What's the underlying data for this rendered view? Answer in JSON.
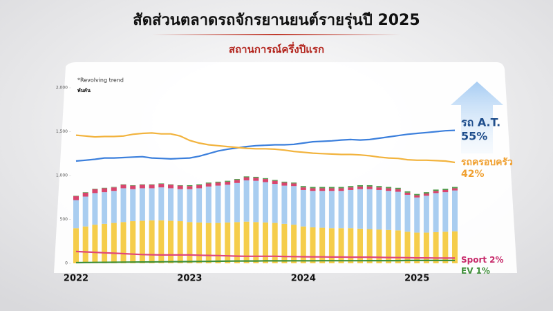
{
  "chart_data": {
    "type": "bar-line",
    "title": "สัดส่วนตลาดรถจักรยานยนต์รายรุ่นปี 2025",
    "subtitle": "สถานการณ์ครึ่งปีแรก",
    "note": "*Revolving trend",
    "y_unit": "พันคัน",
    "categories": [
      "2022",
      null,
      null,
      null,
      null,
      null,
      null,
      null,
      null,
      null,
      null,
      null,
      "2023",
      null,
      null,
      null,
      null,
      null,
      null,
      null,
      null,
      null,
      null,
      null,
      "2024",
      null,
      null,
      null,
      null,
      null,
      null,
      null,
      null,
      null,
      null,
      null,
      "2025",
      null,
      null,
      null,
      null
    ],
    "ylim": [
      0,
      2000
    ],
    "yticks": [
      0,
      500,
      {
        "value": 1000,
        "label": "1,000"
      },
      {
        "value": 1500,
        "label": "1,500"
      },
      {
        "value": 2000,
        "label": "2,000"
      }
    ],
    "bar_series": [
      {
        "color": "#f5cd4b",
        "values": [
          400,
          420,
          440,
          450,
          460,
          470,
          480,
          485,
          490,
          490,
          485,
          480,
          470,
          465,
          460,
          460,
          465,
          470,
          475,
          470,
          465,
          460,
          450,
          440,
          420,
          410,
          405,
          400,
          400,
          400,
          395,
          390,
          385,
          380,
          375,
          360,
          350,
          350,
          355,
          360,
          365
        ]
      },
      {
        "color": "#a9cdf0",
        "values": [
          320,
          340,
          360,
          360,
          365,
          385,
          365,
          370,
          365,
          375,
          370,
          365,
          375,
          390,
          415,
          425,
          430,
          445,
          470,
          470,
          460,
          445,
          435,
          440,
          415,
          415,
          420,
          425,
          425,
          435,
          450,
          455,
          450,
          445,
          440,
          420,
          400,
          420,
          445,
          450,
          465
        ]
      },
      {
        "color": "#d8456e",
        "values": [
          45,
          45,
          45,
          45,
          40,
          40,
          40,
          40,
          40,
          40,
          40,
          40,
          35,
          35,
          35,
          35,
          35,
          35,
          35,
          35,
          35,
          35,
          35,
          30,
          30,
          30,
          30,
          30,
          30,
          30,
          30,
          30,
          30,
          30,
          30,
          25,
          25,
          25,
          25,
          25,
          25
        ]
      },
      {
        "color": "#4f9a4a",
        "values": [
          5,
          5,
          5,
          5,
          5,
          5,
          5,
          5,
          5,
          5,
          5,
          5,
          10,
          10,
          10,
          10,
          10,
          10,
          10,
          10,
          10,
          10,
          10,
          10,
          15,
          15,
          15,
          15,
          15,
          15,
          15,
          15,
          15,
          15,
          15,
          15,
          15,
          15,
          15,
          15,
          15
        ]
      }
    ],
    "line_series": [
      {
        "name": "รถ A.T.",
        "share": "55%",
        "color": "#3b7fdc",
        "label_color": "#1f4e8c",
        "values": [
          1165,
          1175,
          1185,
          1200,
          1200,
          1205,
          1210,
          1215,
          1200,
          1195,
          1190,
          1195,
          1200,
          1220,
          1250,
          1280,
          1300,
          1315,
          1330,
          1340,
          1345,
          1350,
          1350,
          1355,
          1370,
          1385,
          1390,
          1395,
          1405,
          1410,
          1405,
          1410,
          1425,
          1440,
          1455,
          1470,
          1480,
          1490,
          1500,
          1510,
          1515
        ]
      },
      {
        "name": "รถครอบครัว",
        "share": "42%",
        "color": "#f2b33d",
        "label_color": "#f0a030",
        "values": [
          1460,
          1450,
          1440,
          1445,
          1445,
          1450,
          1470,
          1480,
          1485,
          1475,
          1475,
          1450,
          1400,
          1370,
          1350,
          1340,
          1330,
          1320,
          1310,
          1305,
          1305,
          1300,
          1290,
          1275,
          1265,
          1255,
          1250,
          1245,
          1240,
          1240,
          1235,
          1225,
          1210,
          1200,
          1195,
          1180,
          1175,
          1175,
          1170,
          1165,
          1150
        ]
      },
      {
        "name": "Sport",
        "share": "2%",
        "color": "#e0457a",
        "label_color": "#c72a6a",
        "values": [
          135,
          130,
          125,
          120,
          115,
          110,
          105,
          100,
          98,
          95,
          95,
          95,
          95,
          92,
          90,
          88,
          85,
          82,
          80,
          80,
          80,
          80,
          78,
          76,
          75,
          74,
          73,
          72,
          72,
          70,
          70,
          70,
          68,
          66,
          65,
          64,
          62,
          62,
          61,
          60,
          60
        ]
      },
      {
        "name": "EV",
        "share": "1%",
        "color": "#3f8f3a",
        "label_color": "#3f8f3a",
        "values": [
          8,
          9,
          10,
          11,
          12,
          13,
          14,
          15,
          16,
          17,
          18,
          19,
          20,
          21,
          22,
          24,
          25,
          26,
          27,
          27,
          28,
          28,
          28,
          29,
          29,
          29,
          30,
          30,
          30,
          30,
          30,
          31,
          31,
          31,
          31,
          32,
          32,
          32,
          32,
          32,
          32
        ]
      }
    ]
  }
}
